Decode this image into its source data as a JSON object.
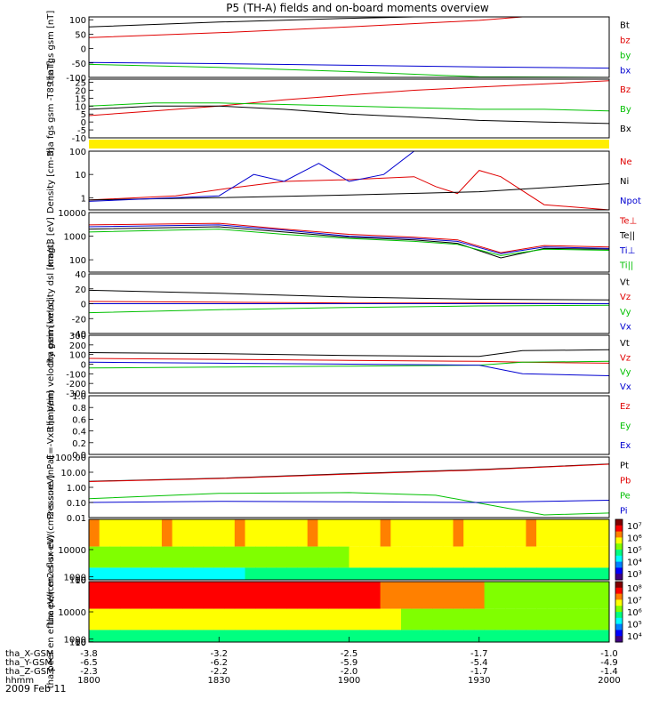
{
  "title": "P5 (TH-A) fields and on-board moments overview",
  "date_label": "2009 Feb 11",
  "colorbar_colors": [
    "#800000",
    "#ff0000",
    "#ff8000",
    "#ffff00",
    "#80ff00",
    "#00ff80",
    "#00ffff",
    "#0080ff",
    "#0000ff",
    "#400080"
  ],
  "series_colors": {
    "black": "#000000",
    "red": "#e00000",
    "green": "#00c000",
    "blue": "#0000d0",
    "yellow": "#ffee00"
  },
  "chart_data": [
    {
      "type": "line",
      "ylabel": "tha fgs gsm [nT]",
      "ylim": [
        -100,
        110
      ],
      "ticks": [
        "100",
        "50",
        "0",
        "-50",
        "-100"
      ],
      "tick_values": [
        100,
        50,
        0,
        -50,
        -100
      ],
      "legend": [
        {
          "text": "Bt",
          "color": "black"
        },
        {
          "text": "bz",
          "color": "red"
        },
        {
          "text": "by",
          "color": "green"
        },
        {
          "text": "bx",
          "color": "blue"
        }
      ],
      "series": [
        {
          "name": "Bt",
          "color": "black",
          "x": [
            1800,
            1830,
            1900,
            1915,
            2000
          ],
          "values": [
            75,
            92,
            105,
            110,
            110
          ]
        },
        {
          "name": "bz",
          "color": "red",
          "x": [
            1800,
            1830,
            1900,
            1930,
            1940
          ],
          "values": [
            38,
            55,
            75,
            98,
            110
          ]
        },
        {
          "name": "by",
          "color": "green",
          "x": [
            1800,
            1830,
            1900,
            1930,
            2000
          ],
          "values": [
            -55,
            -65,
            -80,
            -98,
            -100
          ]
        },
        {
          "name": "bx",
          "color": "blue",
          "x": [
            1800,
            1830,
            1900,
            1930,
            2000
          ],
          "values": [
            -48,
            -52,
            -58,
            -64,
            -68
          ]
        }
      ]
    },
    {
      "type": "line",
      "ylabel": "tha fgs gsm -T89 [nT]",
      "ylim": [
        -10,
        27
      ],
      "ticks": [
        "25",
        "20",
        "15",
        "10",
        "5",
        "0",
        "-5",
        "-10"
      ],
      "tick_values": [
        25,
        20,
        15,
        10,
        5,
        0,
        -5,
        -10
      ],
      "legend": [
        {
          "text": "Bz",
          "color": "red"
        },
        {
          "text": "By",
          "color": "green"
        },
        {
          "text": "Bx",
          "color": "black"
        }
      ],
      "series": [
        {
          "name": "Bz",
          "color": "red",
          "x": [
            1800,
            1815,
            1830,
            1845,
            1900,
            1915,
            1930,
            1945,
            2000
          ],
          "values": [
            4,
            7,
            10,
            14,
            17,
            20,
            22,
            24,
            26
          ]
        },
        {
          "name": "By",
          "color": "green",
          "x": [
            1800,
            1815,
            1830,
            1845,
            1900,
            1915,
            1930,
            1945,
            2000
          ],
          "values": [
            10,
            12,
            12,
            11,
            10,
            9,
            8,
            8,
            7
          ]
        },
        {
          "name": "Bx",
          "color": "black",
          "x": [
            1800,
            1815,
            1830,
            1845,
            1900,
            1915,
            1930,
            1945,
            2000
          ],
          "values": [
            8,
            10,
            10,
            8,
            5,
            3,
            1,
            0,
            -1
          ]
        }
      ]
    },
    {
      "type": "bar",
      "ylabel": "",
      "legend": [],
      "band_color": "yellow"
    },
    {
      "type": "line",
      "scale": "log",
      "ylabel": "Density [cm-3]",
      "ylim": [
        0.3,
        100
      ],
      "ticks": [
        "100",
        "10",
        "1"
      ],
      "tick_values": [
        100,
        10,
        1
      ],
      "legend": [
        {
          "text": "Ne",
          "color": "red"
        },
        {
          "text": "Ni",
          "color": "black"
        },
        {
          "text": "Npot",
          "color": "blue"
        }
      ],
      "series": [
        {
          "name": "Ne",
          "color": "red",
          "x": [
            1800,
            1820,
            1832,
            1845,
            1900,
            1915,
            1920,
            1925,
            1930,
            1935,
            1945,
            2000
          ],
          "values": [
            0.8,
            1.2,
            2.5,
            5,
            6,
            8,
            3,
            1.5,
            15,
            8,
            0.5,
            0.3
          ]
        },
        {
          "name": "Ni",
          "color": "black",
          "x": [
            1800,
            1830,
            1900,
            1930,
            2000
          ],
          "values": [
            0.8,
            1.0,
            1.3,
            1.8,
            4
          ]
        },
        {
          "name": "Npot",
          "color": "blue",
          "x": [
            1800,
            1830,
            1838,
            1845,
            1853,
            1900,
            1908,
            1915,
            1928
          ],
          "values": [
            0.7,
            1.2,
            10,
            5,
            30,
            5,
            10,
            100,
            100
          ]
        }
      ]
    },
    {
      "type": "line",
      "scale": "log",
      "ylabel": "magt3 [eV]",
      "ylim": [
        30,
        10000
      ],
      "ticks": [
        "10000",
        "1000",
        "100"
      ],
      "tick_values": [
        10000,
        1000,
        100
      ],
      "legend": [
        {
          "text": "Te⊥",
          "color": "red"
        },
        {
          "text": "Te||",
          "color": "black"
        },
        {
          "text": "Ti⊥",
          "color": "blue"
        },
        {
          "text": "Ti||",
          "color": "green"
        }
      ],
      "series": [
        {
          "name": "Te⊥",
          "color": "red",
          "x": [
            1800,
            1830,
            1845,
            1900,
            1915,
            1925,
            1935,
            1945,
            2000
          ],
          "values": [
            3000,
            3500,
            2000,
            1200,
            900,
            700,
            200,
            400,
            350
          ]
        },
        {
          "name": "Te||",
          "color": "black",
          "x": [
            1800,
            1830,
            1845,
            1900,
            1915,
            1925,
            1935,
            1945,
            2000
          ],
          "values": [
            2000,
            2500,
            1500,
            900,
            700,
            500,
            120,
            300,
            280
          ]
        },
        {
          "name": "Ti⊥",
          "color": "blue",
          "x": [
            1800,
            1830,
            1845,
            1900,
            1915,
            1925,
            1935,
            1945,
            2000
          ],
          "values": [
            2500,
            3000,
            1800,
            1000,
            800,
            600,
            180,
            350,
            300
          ]
        },
        {
          "name": "Ti||",
          "color": "green",
          "x": [
            1800,
            1830,
            1845,
            1900,
            1915,
            1925,
            1935,
            1945,
            2000
          ],
          "values": [
            1500,
            2000,
            1200,
            800,
            600,
            450,
            150,
            280,
            250
          ]
        }
      ]
    },
    {
      "type": "line",
      "ylabel": "tha peim velocity dsl [km/s]",
      "ylim": [
        -40,
        40
      ],
      "ticks": [
        "40",
        "20",
        "0",
        "-20",
        "-40"
      ],
      "tick_values": [
        40,
        20,
        0,
        -20,
        -40
      ],
      "legend": [
        {
          "text": "Vt",
          "color": "black"
        },
        {
          "text": "Vz",
          "color": "red"
        },
        {
          "text": "Vy",
          "color": "green"
        },
        {
          "text": "Vx",
          "color": "blue"
        }
      ],
      "series": [
        {
          "name": "Vt",
          "color": "black",
          "x": [
            1800,
            1830,
            1900,
            1930,
            2000
          ],
          "values": [
            18,
            14,
            9,
            6,
            5
          ]
        },
        {
          "name": "Vz",
          "color": "red",
          "x": [
            1800,
            1830,
            1900,
            1930,
            2000
          ],
          "values": [
            3,
            2,
            1,
            1,
            0
          ]
        },
        {
          "name": "Vy",
          "color": "green",
          "x": [
            1800,
            1830,
            1900,
            1930,
            2000
          ],
          "values": [
            -12,
            -8,
            -5,
            -3,
            -2
          ]
        },
        {
          "name": "Vx",
          "color": "blue",
          "x": [
            1800,
            1830,
            1900,
            1930,
            2000
          ],
          "values": [
            0,
            0,
            0,
            0,
            0
          ]
        }
      ]
    },
    {
      "type": "line",
      "ylabel": "tha peim velocity gsm [km/s]",
      "ylim": [
        -300,
        300
      ],
      "ticks": [
        "300",
        "200",
        "100",
        "0",
        "-100",
        "-200",
        "-300"
      ],
      "tick_values": [
        300,
        200,
        100,
        0,
        -100,
        -200,
        -300
      ],
      "legend": [
        {
          "text": "Vt",
          "color": "black"
        },
        {
          "text": "Vz",
          "color": "red"
        },
        {
          "text": "Vy",
          "color": "green"
        },
        {
          "text": "Vx",
          "color": "blue"
        }
      ],
      "series": [
        {
          "name": "Vt",
          "color": "black",
          "x": [
            1800,
            1830,
            1900,
            1930,
            1940,
            2000
          ],
          "values": [
            120,
            110,
            90,
            80,
            140,
            150
          ]
        },
        {
          "name": "Vz",
          "color": "red",
          "x": [
            1800,
            1830,
            1900,
            1930,
            1940,
            2000
          ],
          "values": [
            60,
            50,
            40,
            30,
            20,
            10
          ]
        },
        {
          "name": "Vy",
          "color": "green",
          "x": [
            1800,
            1830,
            1900,
            1930,
            1940,
            2000
          ],
          "values": [
            -40,
            -30,
            -20,
            -10,
            20,
            30
          ]
        },
        {
          "name": "Vx",
          "color": "blue",
          "x": [
            1800,
            1830,
            1900,
            1930,
            1940,
            2000
          ],
          "values": [
            20,
            10,
            0,
            -10,
            -100,
            -120
          ]
        }
      ]
    },
    {
      "type": "line",
      "ylabel": "E=-VxB [mV/m]",
      "ylim": [
        0,
        1
      ],
      "ticks": [
        "1.0",
        "0.8",
        "0.6",
        "0.4",
        "0.2",
        "0.0"
      ],
      "tick_values": [
        1.0,
        0.8,
        0.6,
        0.4,
        0.2,
        0.0
      ],
      "legend": [
        {
          "text": "Ez",
          "color": "red"
        },
        {
          "text": "Ey",
          "color": "green"
        },
        {
          "text": "Ex",
          "color": "blue"
        }
      ],
      "series": []
    },
    {
      "type": "line",
      "scale": "log",
      "ylabel": "Pressure [nPa]",
      "ylim": [
        0.01,
        100
      ],
      "ticks": [
        "100.00",
        "10.00",
        "1.00",
        "0.10",
        "0.01"
      ],
      "tick_values": [
        100,
        10,
        1,
        0.1,
        0.01
      ],
      "legend": [
        {
          "text": "Pt",
          "color": "black"
        },
        {
          "text": "Pb",
          "color": "red"
        },
        {
          "text": "Pe",
          "color": "green"
        },
        {
          "text": "Pi",
          "color": "blue"
        }
      ],
      "series": [
        {
          "name": "Pt",
          "color": "black",
          "x": [
            1800,
            1830,
            1900,
            1930,
            2000
          ],
          "values": [
            2.5,
            4,
            8,
            15,
            35
          ]
        },
        {
          "name": "Pb",
          "color": "red",
          "x": [
            1800,
            1830,
            1900,
            1930,
            2000
          ],
          "values": [
            2.4,
            3.8,
            7.5,
            14,
            34
          ]
        },
        {
          "name": "Pe",
          "color": "green",
          "x": [
            1800,
            1830,
            1900,
            1920,
            1935,
            1945,
            2000
          ],
          "values": [
            0.18,
            0.4,
            0.45,
            0.3,
            0.05,
            0.015,
            0.02
          ]
        },
        {
          "name": "Pi",
          "color": "blue",
          "x": [
            1800,
            1830,
            1900,
            1930,
            2000
          ],
          "values": [
            0.1,
            0.12,
            0.11,
            0.1,
            0.14
          ]
        }
      ]
    },
    {
      "type": "heatmap",
      "ylabel": "tha peir en eflux eV/(cm2-s-sr-eV)",
      "ylim": [
        10,
        20000
      ],
      "ticks": [
        "10000",
        "1000",
        "100",
        "10"
      ],
      "tick_values": [
        10000,
        1000,
        100,
        10
      ],
      "colorbar_ticks": [
        "10⁷",
        "10⁶",
        "10⁵",
        "10⁴",
        "10³"
      ],
      "colorbar_range": [
        1000,
        10000000
      ]
    },
    {
      "type": "heatmap",
      "ylabel": "tha peer en eflux eV/(cm2-s-sr-eV)",
      "ylim": [
        10,
        20000
      ],
      "ticks": [
        "10000",
        "1000",
        "100",
        "10"
      ],
      "tick_values": [
        10000,
        1000,
        100,
        10
      ],
      "colorbar_ticks": [
        "10⁸",
        "10⁷",
        "10⁶",
        "10⁵",
        "10⁴"
      ],
      "colorbar_range": [
        10000,
        100000000
      ]
    }
  ],
  "xaxis": {
    "ticks": [
      1800,
      1830,
      1900,
      1930,
      2000
    ],
    "xlim": [
      1800,
      2000
    ],
    "rows": [
      {
        "label": "tha_X-GSM",
        "values": [
          "-3.8",
          "-3.2",
          "-2.5",
          "-1.7",
          "-1.0"
        ]
      },
      {
        "label": "tha_Y-GSM",
        "values": [
          "-6.5",
          "-6.2",
          "-5.9",
          "-5.4",
          "-4.9"
        ]
      },
      {
        "label": "tha_Z-GSM",
        "values": [
          "-2.3",
          "-2.2",
          "-2.0",
          "-1.7",
          "-1.4"
        ]
      },
      {
        "label": "hhmm",
        "values": [
          "1800",
          "1830",
          "1900",
          "1930",
          "2000"
        ]
      }
    ]
  }
}
